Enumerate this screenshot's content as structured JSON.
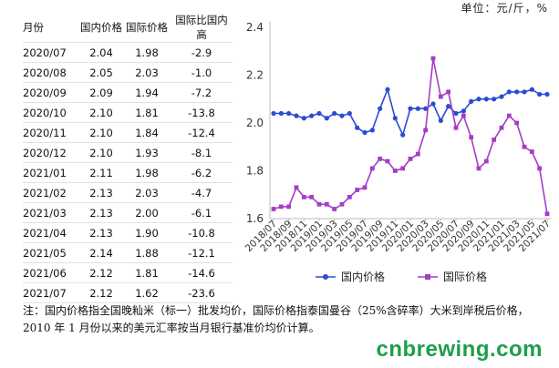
{
  "unit_label": "单位：元/斤，%",
  "table": {
    "headers": [
      "月份",
      "国内价格",
      "国际价格",
      "国际比国内高"
    ],
    "rows": [
      [
        "2020/07",
        "2.04",
        "1.98",
        "-2.9"
      ],
      [
        "2020/08",
        "2.05",
        "2.03",
        "-1.0"
      ],
      [
        "2020/09",
        "2.09",
        "1.94",
        "-7.2"
      ],
      [
        "2020/10",
        "2.10",
        "1.81",
        "-13.8"
      ],
      [
        "2020/11",
        "2.10",
        "1.84",
        "-12.4"
      ],
      [
        "2020/12",
        "2.10",
        "1.93",
        "-8.1"
      ],
      [
        "2021/01",
        "2.11",
        "1.98",
        "-6.2"
      ],
      [
        "2021/02",
        "2.13",
        "2.03",
        "-4.7"
      ],
      [
        "2021/03",
        "2.13",
        "2.00",
        "-6.1"
      ],
      [
        "2021/04",
        "2.13",
        "1.90",
        "-10.8"
      ],
      [
        "2021/05",
        "2.14",
        "1.88",
        "-12.1"
      ],
      [
        "2021/06",
        "2.12",
        "1.81",
        "-14.6"
      ],
      [
        "2021/07",
        "2.12",
        "1.62",
        "-23.6"
      ]
    ]
  },
  "chart_data": {
    "type": "line",
    "title": "",
    "xlabel": "",
    "ylabel": "",
    "ylim": [
      1.6,
      2.4
    ],
    "yticks": [
      "1.6",
      "1.8",
      "2.0",
      "2.2",
      "2.4"
    ],
    "x_tick_labels": [
      "2018/07",
      "2018/09",
      "2018/11",
      "2019/01",
      "2019/03",
      "2019/05",
      "2019/07",
      "2019/09",
      "2019/11",
      "2020/01",
      "2020/03",
      "2020/05",
      "2020/07",
      "2020/09",
      "2020/11",
      "2021/01",
      "2021/03",
      "2021/05",
      "2021/07"
    ],
    "x": [
      "2018/07",
      "2018/08",
      "2018/09",
      "2018/10",
      "2018/11",
      "2018/12",
      "2019/01",
      "2019/02",
      "2019/03",
      "2019/04",
      "2019/05",
      "2019/06",
      "2019/07",
      "2019/08",
      "2019/09",
      "2019/10",
      "2019/11",
      "2019/12",
      "2020/01",
      "2020/02",
      "2020/03",
      "2020/04",
      "2020/05",
      "2020/06",
      "2020/07",
      "2020/08",
      "2020/09",
      "2020/10",
      "2020/11",
      "2020/12",
      "2021/01",
      "2021/02",
      "2021/03",
      "2021/04",
      "2021/05",
      "2021/06",
      "2021/07"
    ],
    "legend_position": "bottom",
    "grid": false,
    "series": [
      {
        "name": "国内价格",
        "color": "#2b4bd6",
        "marker": "circle",
        "values": [
          2.04,
          2.04,
          2.04,
          2.03,
          2.02,
          2.03,
          2.04,
          2.02,
          2.04,
          2.03,
          2.04,
          1.98,
          1.96,
          1.97,
          2.06,
          2.14,
          2.02,
          1.95,
          2.06,
          2.06,
          2.06,
          2.08,
          2.01,
          2.07,
          2.04,
          2.05,
          2.09,
          2.1,
          2.1,
          2.1,
          2.11,
          2.13,
          2.13,
          2.13,
          2.14,
          2.12,
          2.12
        ]
      },
      {
        "name": "国际价格",
        "color": "#a63cc6",
        "marker": "square",
        "values": [
          1.64,
          1.65,
          1.65,
          1.73,
          1.69,
          1.69,
          1.66,
          1.66,
          1.64,
          1.66,
          1.69,
          1.72,
          1.73,
          1.81,
          1.85,
          1.84,
          1.8,
          1.81,
          1.85,
          1.87,
          1.97,
          2.27,
          2.11,
          2.13,
          1.98,
          2.03,
          1.94,
          1.81,
          1.84,
          1.93,
          1.98,
          2.03,
          2.0,
          1.9,
          1.88,
          1.81,
          1.62
        ]
      }
    ]
  },
  "note": "注：国内价格指全国晚籼米（标一）批发均价，国际价格指泰国曼谷（25%含碎率）大米到岸税后价格，2010 年 1 月份以来的美元汇率按当月银行基准价均价计算。",
  "watermark": "cnbrewing.com"
}
